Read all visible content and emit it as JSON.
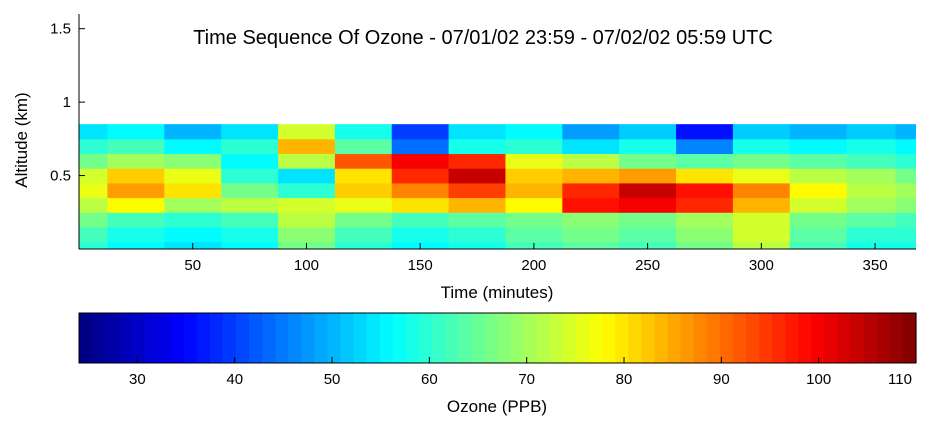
{
  "chart_data": {
    "type": "heatmap",
    "title": "Time Sequence Of Ozone - 07/01/02 23:59 - 07/02/02 05:59 UTC",
    "xlabel": "Time (minutes)",
    "ylabel": "Altitude (km)",
    "xlim": [
      0,
      368
    ],
    "ylim": [
      0,
      1.6
    ],
    "xticks": [
      50,
      100,
      150,
      200,
      250,
      300,
      350
    ],
    "yticks": [
      0.5,
      1,
      1.5
    ],
    "xtick_labels": [
      "50",
      "100",
      "150",
      "200",
      "250",
      "300",
      "350"
    ],
    "ytick_labels": [
      "0.5",
      "1",
      "1.5"
    ],
    "grid": false,
    "colormap": "jet",
    "colorbar": {
      "label": "Ozone (PPB)",
      "range": [
        24,
        110
      ],
      "ticks": [
        30,
        40,
        50,
        60,
        70,
        80,
        90,
        100,
        110
      ],
      "tick_labels": [
        "30",
        "40",
        "50",
        "60",
        "70",
        "80",
        "90",
        "100",
        "110"
      ]
    },
    "ozone_ppb": {
      "x": [
        0,
        25,
        50,
        75,
        100,
        125,
        150,
        175,
        200,
        225,
        250,
        275,
        300,
        325,
        350,
        368
      ],
      "y": [
        0,
        0.1,
        0.2,
        0.3,
        0.4,
        0.5,
        0.6,
        0.7,
        0.8
      ],
      "z": [
        [
          60,
          56,
          54,
          56,
          66,
          60,
          56,
          58,
          62,
          64,
          62,
          66,
          72,
          62,
          58,
          58
        ],
        [
          62,
          58,
          56,
          58,
          68,
          62,
          58,
          60,
          64,
          66,
          64,
          68,
          74,
          64,
          60,
          60
        ],
        [
          66,
          62,
          60,
          62,
          72,
          66,
          62,
          64,
          66,
          68,
          66,
          70,
          74,
          66,
          64,
          62
        ],
        [
          72,
          78,
          70,
          72,
          74,
          76,
          80,
          84,
          78,
          98,
          100,
          96,
          84,
          74,
          70,
          68
        ],
        [
          76,
          86,
          80,
          66,
          60,
          82,
          88,
          94,
          84,
          96,
          104,
          98,
          88,
          78,
          72,
          70
        ],
        [
          74,
          82,
          76,
          60,
          54,
          80,
          96,
          104,
          82,
          84,
          86,
          80,
          76,
          72,
          70,
          66
        ],
        [
          66,
          70,
          68,
          56,
          72,
          92,
          100,
          96,
          76,
          72,
          66,
          64,
          66,
          64,
          62,
          60
        ],
        [
          60,
          62,
          56,
          60,
          84,
          64,
          44,
          58,
          60,
          54,
          58,
          46,
          58,
          56,
          58,
          56
        ],
        [
          54,
          56,
          50,
          54,
          74,
          58,
          40,
          54,
          56,
          48,
          52,
          36,
          52,
          50,
          52,
          50
        ]
      ]
    }
  }
}
